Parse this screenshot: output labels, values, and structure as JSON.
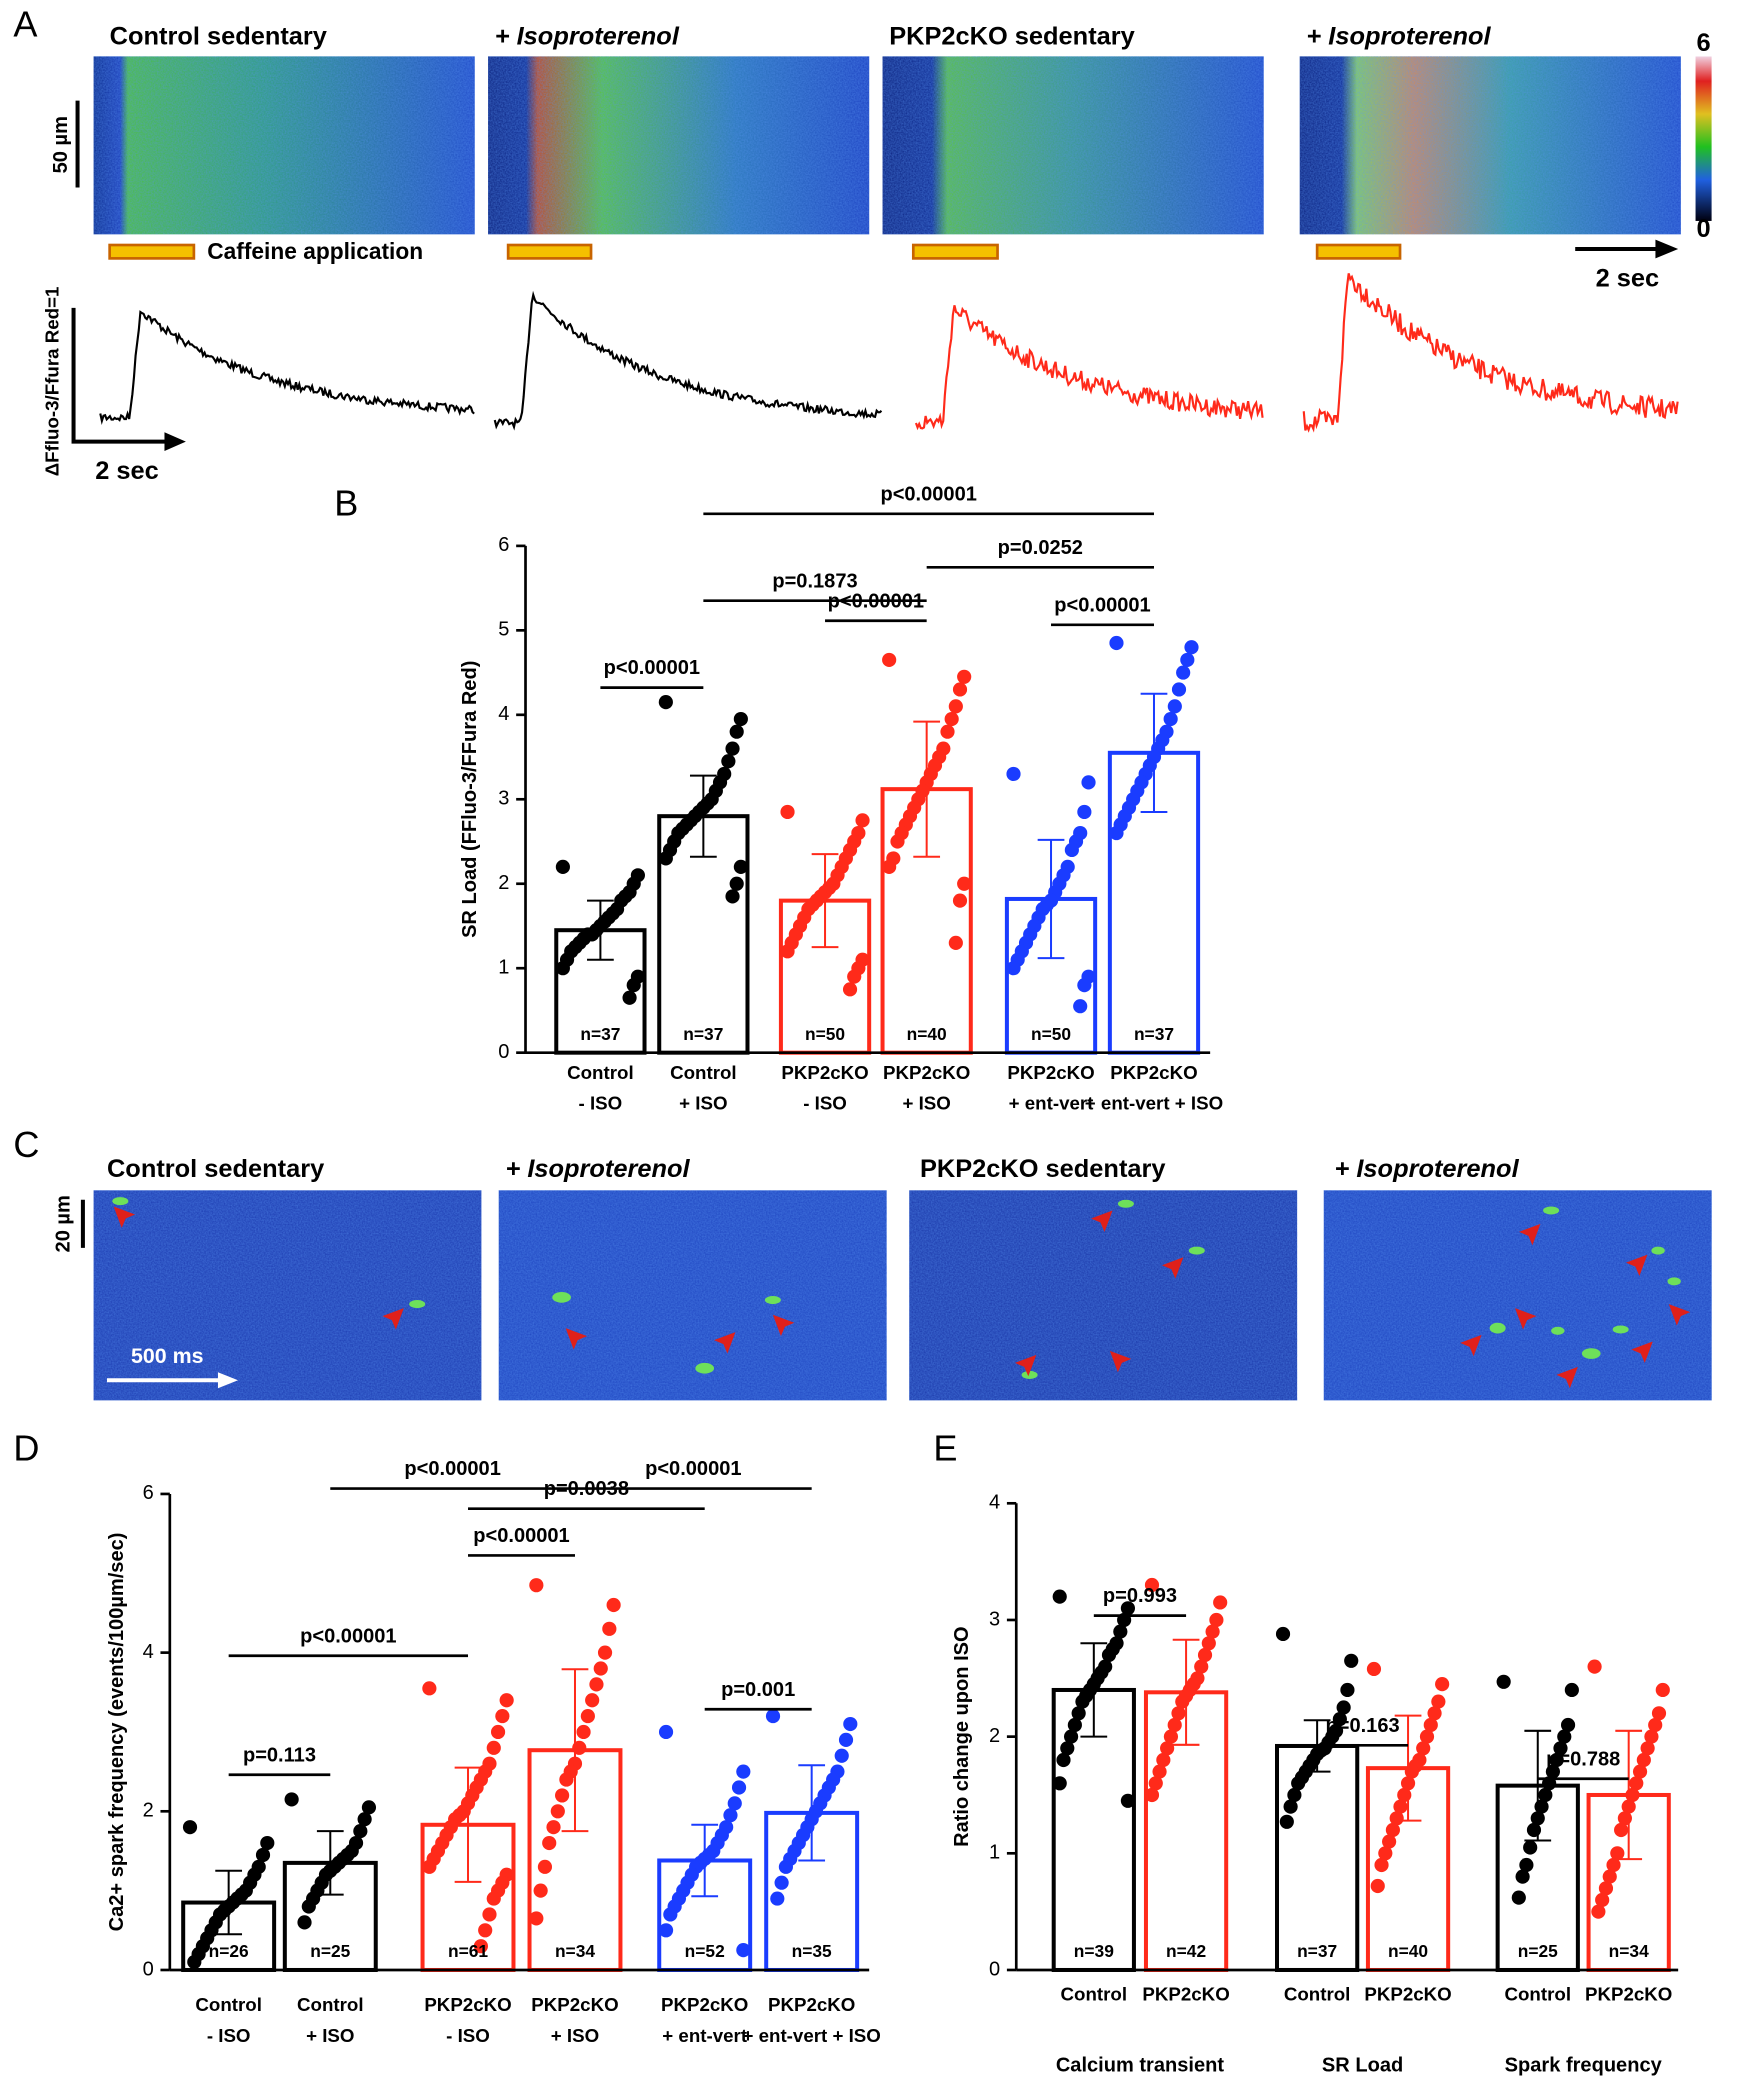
{
  "panel_a": {
    "label": "A",
    "titles": [
      "Control sedentary",
      "+ Isoproterenol",
      "PKP2cKO sedentary",
      "+ Isoproterenol"
    ],
    "colorbar_ticks": [
      6,
      0
    ],
    "scale_bar": "50 µm",
    "caffeine": "Caffeine application",
    "time_bar": "2 sec",
    "trace_y_label": "ΔFfluo-3/Ffura Red=1",
    "trace_time": "2 sec"
  },
  "panel_c": {
    "label": "C",
    "titles": [
      "Control sedentary",
      "+ Isoproterenol",
      "PKP2cKO sedentary",
      "+ Isoproterenol"
    ],
    "scale_bar": "20 µm",
    "time_bar": "500 ms"
  },
  "chart_data": [
    {
      "type": "bar",
      "title": "B",
      "y_label": "SR Load (FFluo-3/FFura Red)",
      "categories": [
        [
          "Control",
          "- ISO"
        ],
        [
          "Control",
          "+ ISO"
        ],
        [
          "PKP2cKO",
          "- ISO"
        ],
        [
          "PKP2cKO",
          "+ ISO"
        ],
        [
          "PKP2cKO",
          "+ ent-vert"
        ],
        [
          "PKP2cKO",
          "+ ent-vert + ISO"
        ]
      ],
      "values": [
        1.45,
        2.8,
        1.8,
        3.12,
        1.82,
        3.55
      ],
      "errors": [
        0.35,
        0.48,
        0.55,
        0.8,
        0.7,
        0.7
      ],
      "colors": [
        "#000000",
        "#000000",
        "#ff2a1a",
        "#ff2a1a",
        "#1a3cff",
        "#1a3cff"
      ],
      "n_labels": [
        "n=37",
        "n=37",
        "n=50",
        "n=40",
        "n=50",
        "n=37"
      ],
      "annotations": [
        "p<0.00001",
        "p<0.00001",
        "p=0.1873",
        "p<0.00001",
        "p=0.0252",
        "p<0.00001"
      ],
      "points": [
        [
          2.2,
          2.1,
          2.0,
          1.9,
          1.85,
          1.8,
          1.7,
          1.65,
          1.6,
          1.55,
          1.5,
          1.45,
          1.4,
          1.4,
          1.35,
          1.3,
          1.25,
          1.2,
          1.1,
          1.0,
          0.9,
          0.8,
          0.65
        ],
        [
          4.15,
          3.95,
          3.8,
          3.6,
          3.45,
          3.3,
          3.2,
          3.1,
          3.0,
          2.95,
          2.9,
          2.85,
          2.8,
          2.75,
          2.7,
          2.65,
          2.6,
          2.5,
          2.4,
          2.3,
          2.2,
          2.0,
          1.85
        ],
        [
          2.85,
          2.75,
          2.6,
          2.5,
          2.4,
          2.3,
          2.2,
          2.1,
          2.0,
          1.95,
          1.9,
          1.85,
          1.8,
          1.75,
          1.7,
          1.6,
          1.5,
          1.4,
          1.3,
          1.2,
          1.1,
          1.0,
          0.9,
          0.75
        ],
        [
          4.65,
          4.45,
          4.3,
          4.1,
          3.95,
          3.8,
          3.6,
          3.5,
          3.4,
          3.3,
          3.2,
          3.1,
          3.0,
          2.9,
          2.8,
          2.7,
          2.6,
          2.5,
          2.3,
          2.2,
          2.0,
          1.8,
          1.3
        ],
        [
          3.3,
          3.2,
          2.85,
          2.6,
          2.5,
          2.4,
          2.2,
          2.1,
          2.0,
          1.9,
          1.8,
          1.75,
          1.7,
          1.6,
          1.5,
          1.4,
          1.3,
          1.2,
          1.1,
          1.0,
          0.9,
          0.8,
          0.55
        ],
        [
          4.85,
          4.8,
          4.65,
          4.5,
          4.3,
          4.1,
          3.95,
          3.8,
          3.7,
          3.6,
          3.5,
          3.4,
          3.3,
          3.2,
          3.1,
          3.0,
          2.9,
          2.8,
          2.7,
          2.6
        ]
      ],
      "ylim": [
        0,
        6
      ],
      "yticks": [
        0,
        1,
        2,
        3,
        4,
        5,
        6
      ]
    },
    {
      "type": "bar",
      "title": "D",
      "y_label": "Ca2+ spark frequency (events/100µm/sec)",
      "categories": [
        [
          "Control",
          "- ISO"
        ],
        [
          "Control",
          "+ ISO"
        ],
        [
          "PKP2cKO",
          "- ISO"
        ],
        [
          "PKP2cKO",
          "+ ISO"
        ],
        [
          "PKP2cKO",
          "+ ent-vert"
        ],
        [
          "PKP2cKO",
          "+ ent-vert + ISO"
        ]
      ],
      "values": [
        0.85,
        1.35,
        1.83,
        2.77,
        1.38,
        1.98
      ],
      "errors": [
        0.4,
        0.4,
        0.72,
        1.02,
        0.45,
        0.6
      ],
      "colors": [
        "#000000",
        "#000000",
        "#ff2a1a",
        "#ff2a1a",
        "#1a3cff",
        "#1a3cff"
      ],
      "n_labels": [
        "n=26",
        "n=25",
        "n=61",
        "n=34",
        "n=52",
        "n=35"
      ],
      "annotations": [
        "p=0.113",
        "p<0.00001",
        "p=0.001",
        "p<0.00001",
        "p=0.0038",
        "p<0.00001",
        "p<0.00001"
      ],
      "points": [
        [
          1.8,
          1.6,
          1.45,
          1.3,
          1.2,
          1.1,
          1.0,
          0.95,
          0.9,
          0.85,
          0.8,
          0.75,
          0.7,
          0.6,
          0.5,
          0.4,
          0.3,
          0.2,
          0.1
        ],
        [
          2.15,
          2.05,
          1.9,
          1.75,
          1.6,
          1.5,
          1.45,
          1.4,
          1.35,
          1.3,
          1.25,
          1.2,
          1.1,
          1.0,
          0.9,
          0.8,
          0.6
        ],
        [
          3.55,
          3.4,
          3.2,
          3.0,
          2.8,
          2.6,
          2.5,
          2.4,
          2.3,
          2.2,
          2.1,
          2.0,
          1.95,
          1.9,
          1.8,
          1.7,
          1.6,
          1.5,
          1.4,
          1.3,
          1.2,
          1.1,
          1.0,
          0.9,
          0.7,
          0.5,
          0.3
        ],
        [
          4.85,
          4.6,
          4.3,
          4.0,
          3.8,
          3.6,
          3.4,
          3.2,
          3.0,
          2.8,
          2.6,
          2.5,
          2.4,
          2.2,
          2.0,
          1.8,
          1.6,
          1.3,
          1.0,
          0.65
        ],
        [
          3.0,
          2.5,
          2.3,
          2.1,
          1.95,
          1.8,
          1.7,
          1.6,
          1.5,
          1.45,
          1.4,
          1.35,
          1.3,
          1.2,
          1.1,
          1.0,
          0.9,
          0.8,
          0.7,
          0.5,
          0.25
        ],
        [
          3.2,
          3.1,
          2.9,
          2.7,
          2.5,
          2.4,
          2.3,
          2.2,
          2.1,
          2.0,
          1.9,
          1.8,
          1.7,
          1.6,
          1.5,
          1.4,
          1.3,
          1.1,
          0.9
        ]
      ],
      "ylim": [
        0,
        6
      ],
      "yticks": [
        0,
        2,
        4,
        6
      ]
    },
    {
      "type": "bar",
      "title": "E",
      "y_label": "Ratio change upon ISO",
      "categories": [
        [
          "Control"
        ],
        [
          "PKP2cKO"
        ],
        [
          "Control"
        ],
        [
          "PKP2cKO"
        ],
        [
          "Control"
        ],
        [
          "PKP2cKO"
        ]
      ],
      "group_labels": [
        "Calcium transient",
        "SR Load",
        "Spark frequency"
      ],
      "values": [
        2.4,
        2.38,
        1.92,
        1.73,
        1.58,
        1.5
      ],
      "errors": [
        0.4,
        0.45,
        0.22,
        0.45,
        0.47,
        0.55
      ],
      "colors": [
        "#000000",
        "#ff2a1a",
        "#000000",
        "#ff2a1a",
        "#000000",
        "#ff2a1a"
      ],
      "n_labels": [
        "n=39",
        "n=42",
        "n=37",
        "n=40",
        "n=25",
        "n=34"
      ],
      "annotations": [
        "p=0.993",
        "p=0.163",
        "p=0.788"
      ],
      "points": [
        [
          3.2,
          3.1,
          3.0,
          2.9,
          2.8,
          2.75,
          2.7,
          2.6,
          2.55,
          2.5,
          2.45,
          2.4,
          2.35,
          2.3,
          2.2,
          2.1,
          2.0,
          1.9,
          1.8,
          1.6,
          1.45
        ],
        [
          3.3,
          3.15,
          3.0,
          2.9,
          2.8,
          2.7,
          2.6,
          2.5,
          2.45,
          2.4,
          2.35,
          2.3,
          2.2,
          2.1,
          2.0,
          1.9,
          1.8,
          1.7,
          1.6,
          1.5
        ],
        [
          2.88,
          2.65,
          2.4,
          2.25,
          2.15,
          2.05,
          2.0,
          1.95,
          1.9,
          1.88,
          1.85,
          1.8,
          1.75,
          1.7,
          1.65,
          1.6,
          1.5,
          1.4,
          1.27
        ],
        [
          2.58,
          2.45,
          2.3,
          2.2,
          2.1,
          2.0,
          1.9,
          1.8,
          1.75,
          1.7,
          1.6,
          1.5,
          1.4,
          1.3,
          1.2,
          1.1,
          1.0,
          0.9,
          0.72
        ],
        [
          2.47,
          2.4,
          2.1,
          2.0,
          1.9,
          1.8,
          1.7,
          1.6,
          1.5,
          1.4,
          1.3,
          1.2,
          1.05,
          0.9,
          0.8,
          0.62
        ],
        [
          2.6,
          2.4,
          2.2,
          2.1,
          2.0,
          1.9,
          1.8,
          1.7,
          1.6,
          1.5,
          1.4,
          1.3,
          1.2,
          1.0,
          0.9,
          0.8,
          0.7,
          0.6,
          0.5
        ]
      ],
      "ylim": [
        0,
        4
      ],
      "yticks": [
        0,
        1,
        2,
        3,
        4
      ]
    }
  ]
}
